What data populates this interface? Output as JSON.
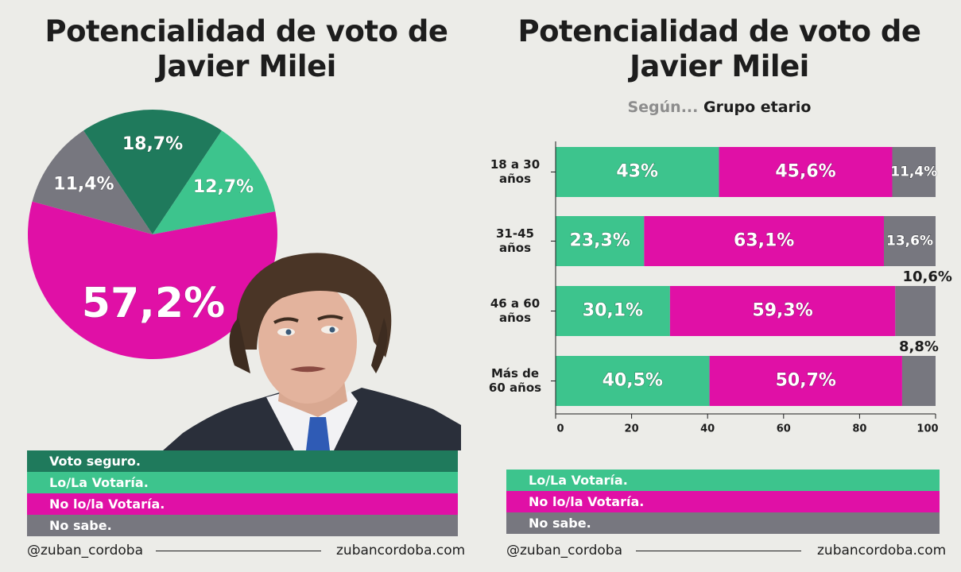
{
  "left_panel": {
    "title_line1": "Potencialidad de voto de",
    "title_line2": "Javier Milei",
    "legend": [
      {
        "label": "Voto seguro.",
        "color": "#1f7a5c"
      },
      {
        "label": "Lo/La Votaría.",
        "color": "#3dc48d"
      },
      {
        "label": "No lo/la Votaría.",
        "color": "#e010a6"
      },
      {
        "label": "No sabe.",
        "color": "#77777f"
      }
    ],
    "footer_handle": "@zuban_cordoba",
    "footer_site": "zubancordoba.com"
  },
  "right_panel": {
    "title_line1": "Potencialidad de voto de",
    "title_line2": "Javier Milei",
    "subtitle_prefix": "Según...",
    "subtitle_group": "Grupo etario",
    "legend": [
      {
        "label": "Lo/La Votaría.",
        "color": "#3dc48d"
      },
      {
        "label": "No lo/la Votaría.",
        "color": "#e010a6"
      },
      {
        "label": "No sabe.",
        "color": "#77777f"
      }
    ],
    "footer_handle": "@zuban_cordoba",
    "footer_site": "zubancordoba.com"
  },
  "chart_data": [
    {
      "type": "pie",
      "slices": [
        {
          "name": "Voto seguro.",
          "value": 18.7,
          "label": "18,7%",
          "color": "#1f7a5c"
        },
        {
          "name": "Lo/La Votaría.",
          "value": 12.7,
          "label": "12,7%",
          "color": "#3dc48d"
        },
        {
          "name": "No lo/la Votaría.",
          "value": 57.2,
          "label": "57,2%",
          "color": "#e010a6"
        },
        {
          "name": "No sabe.",
          "value": 11.4,
          "label": "11,4%",
          "color": "#77777f"
        }
      ]
    },
    {
      "type": "bar",
      "orientation": "horizontal",
      "stacked": true,
      "categories": [
        [
          "18 a 30",
          "años"
        ],
        [
          "31-45",
          "años"
        ],
        [
          "46 a 60",
          "años"
        ],
        [
          "Más de",
          "60 años"
        ]
      ],
      "series": [
        {
          "name": "Lo/La Votaría.",
          "color": "#3dc48d",
          "values": [
            43,
            23.3,
            30.1,
            40.5
          ],
          "labels": [
            "43%",
            "23,3%",
            "30,1%",
            "40,5%"
          ]
        },
        {
          "name": "No lo/la Votaría.",
          "color": "#e010a6",
          "values": [
            45.6,
            63.1,
            59.3,
            50.7
          ],
          "labels": [
            "45,6%",
            "63,1%",
            "59,3%",
            "50,7%"
          ]
        },
        {
          "name": "No sabe.",
          "color": "#77777f",
          "values": [
            11.4,
            13.6,
            10.6,
            8.8
          ],
          "labels": [
            "11,4%",
            "13,6%",
            "10,6%",
            "8,8%"
          ]
        }
      ],
      "xlim": [
        0,
        100
      ],
      "xticks": [
        0,
        20,
        40,
        60,
        80,
        100
      ],
      "grid": false
    }
  ]
}
